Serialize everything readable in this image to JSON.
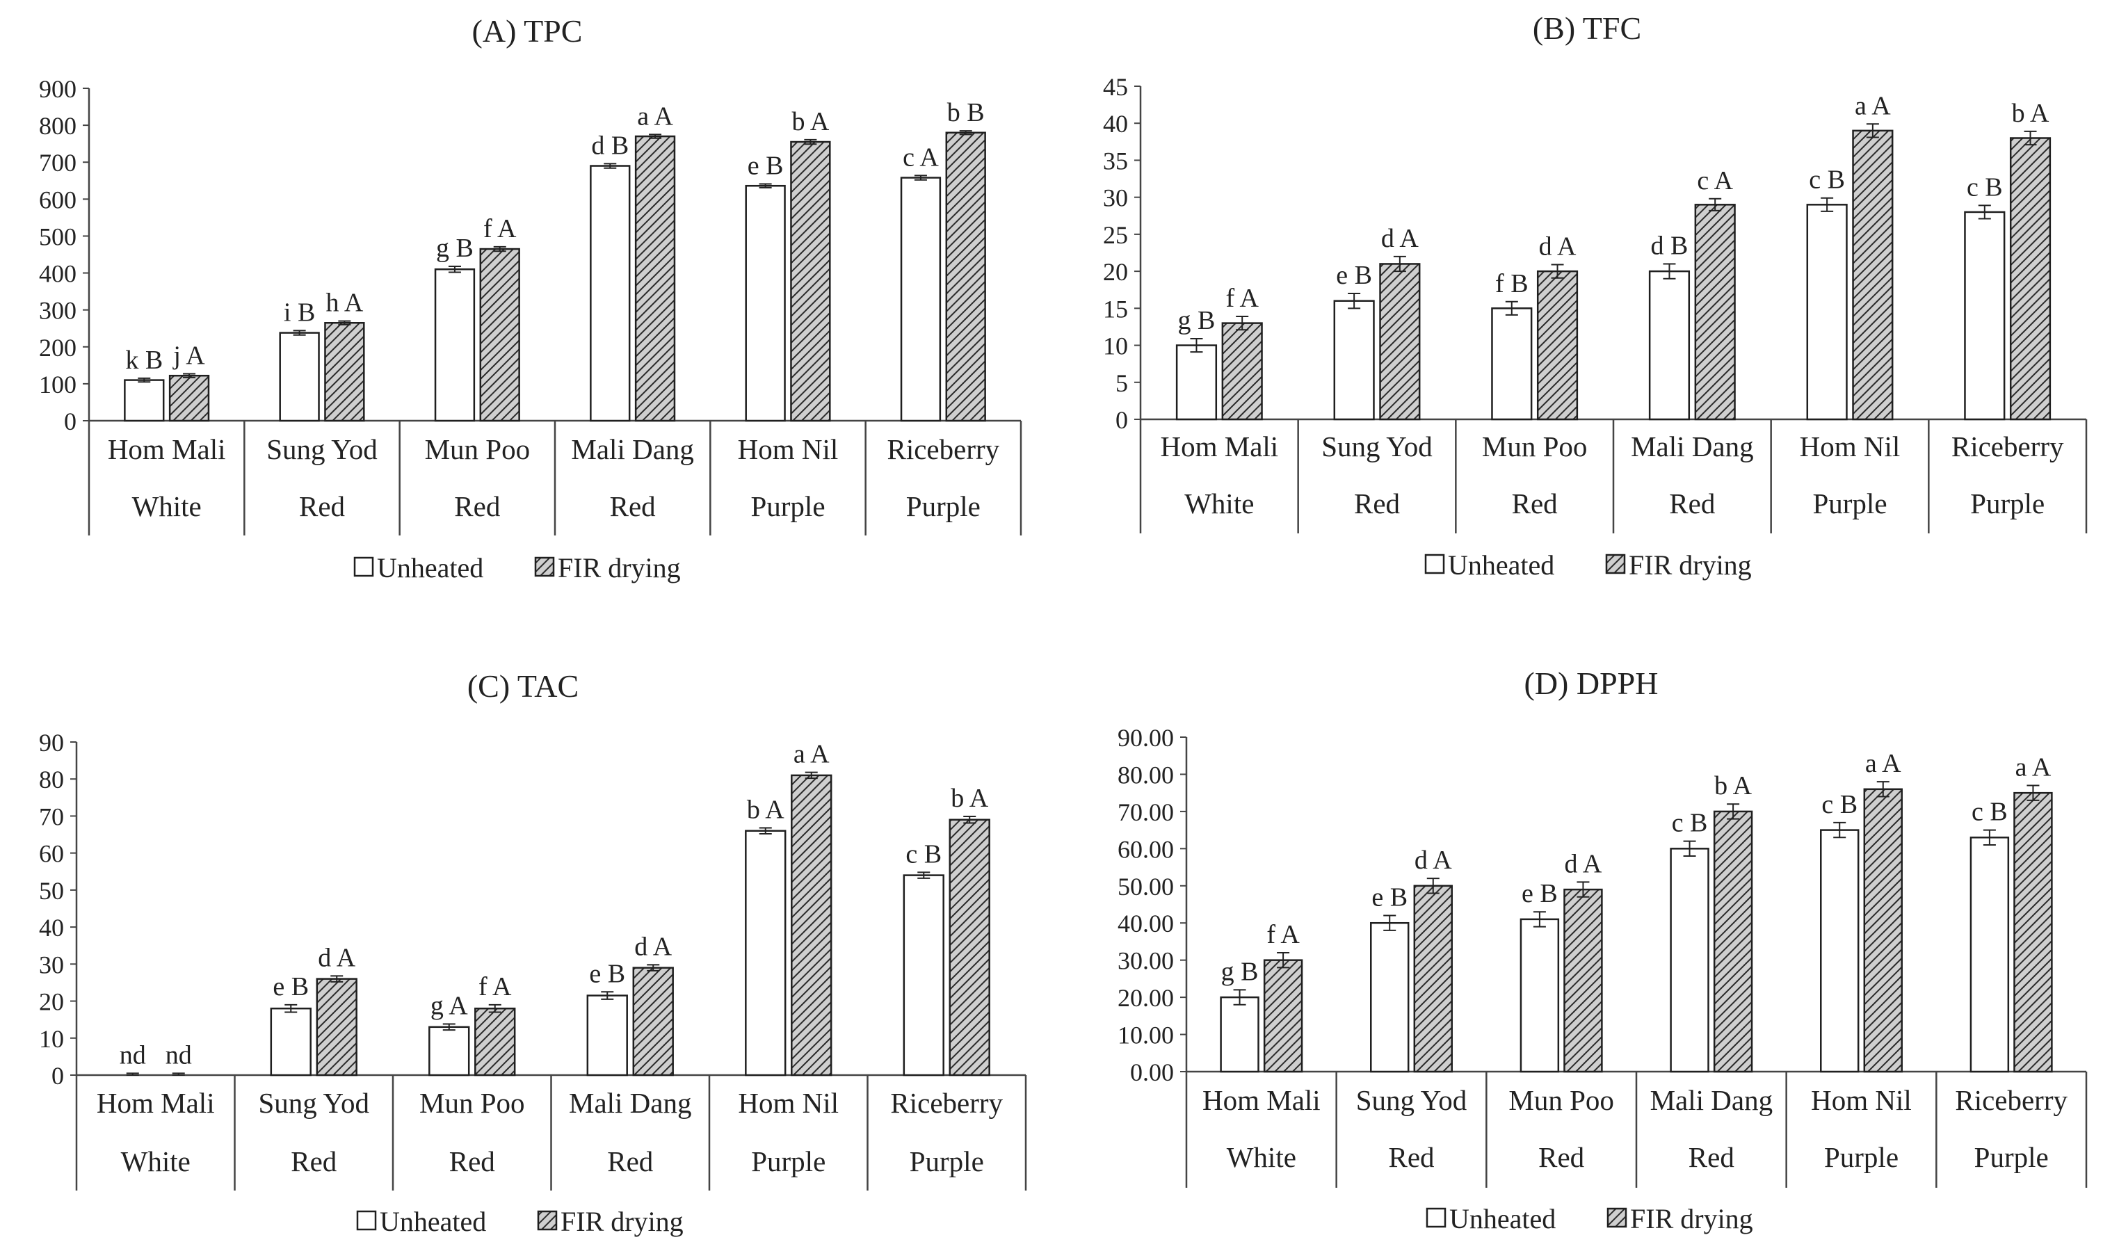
{
  "figure": {
    "bar_colors": {
      "unheated": "#ffffff",
      "fir": "#c8c8c8",
      "outline": "#1f1f1f",
      "hatch": "#2a2a2a"
    }
  },
  "chart_data": [
    {
      "id": "A",
      "type": "bar",
      "title": "(A) TPC",
      "categories": [
        "Hom Mali",
        "Sung Yod",
        "Mun Poo",
        "Mali Dang",
        "Hom Nil",
        "Riceberry"
      ],
      "groups": [
        "White",
        "Red",
        "Red",
        "Red",
        "Purple",
        "Purple"
      ],
      "ylim": [
        0,
        900
      ],
      "yticks": [
        "0",
        "100",
        "200",
        "300",
        "400",
        "500",
        "600",
        "700",
        "800",
        "900"
      ],
      "legend": [
        "Unheated",
        "FIR drying"
      ],
      "series": [
        {
          "name": "Unheated",
          "values": [
            110,
            238,
            410,
            690,
            636,
            658
          ],
          "errors": [
            5,
            6,
            8,
            6,
            5,
            6
          ],
          "labels": [
            "k B",
            "i B",
            "g B",
            "d B",
            "e B",
            "c A"
          ]
        },
        {
          "name": "FIR drying",
          "values": [
            122,
            265,
            465,
            770,
            755,
            780
          ],
          "errors": [
            5,
            5,
            6,
            5,
            6,
            5
          ],
          "labels": [
            "j A",
            "h A",
            "f A",
            "a A",
            "b A",
            "b B"
          ]
        }
      ]
    },
    {
      "id": "B",
      "type": "bar",
      "title": "(B) TFC",
      "categories": [
        "Hom Mali",
        "Sung Yod",
        "Mun Poo",
        "Mali Dang",
        "Hom Nil",
        "Riceberry"
      ],
      "groups": [
        "White",
        "Red",
        "Red",
        "Red",
        "Purple",
        "Purple"
      ],
      "ylim": [
        0,
        45
      ],
      "yticks": [
        "0",
        "5",
        "10",
        "15",
        "20",
        "25",
        "30",
        "35",
        "40",
        "45"
      ],
      "legend": [
        "Unheated",
        "FIR drying"
      ],
      "series": [
        {
          "name": "Unheated",
          "values": [
            10,
            16,
            15,
            20,
            29,
            28
          ],
          "errors": [
            0.9,
            1.0,
            0.9,
            1.0,
            0.9,
            0.9
          ],
          "labels": [
            "g B",
            "e B",
            "f B",
            "d B",
            "c B",
            "c B"
          ]
        },
        {
          "name": "FIR drying",
          "values": [
            13,
            21,
            20,
            29,
            39,
            38
          ],
          "errors": [
            0.9,
            1.0,
            0.9,
            0.8,
            0.9,
            0.9
          ],
          "labels": [
            "f A",
            "d A",
            "d A",
            "c A",
            "a A",
            "b A"
          ]
        }
      ]
    },
    {
      "id": "C",
      "type": "bar",
      "title": "(C) TAC",
      "categories": [
        "Hom Mali",
        "Sung Yod",
        "Mun Poo",
        "Mali Dang",
        "Hom Nil",
        "Riceberry"
      ],
      "groups": [
        "White",
        "Red",
        "Red",
        "Red",
        "Purple",
        "Purple"
      ],
      "ylim": [
        0,
        90
      ],
      "yticks": [
        "0",
        "10",
        "20",
        "30",
        "40",
        "50",
        "60",
        "70",
        "80",
        "90"
      ],
      "legend": [
        "Unheated",
        "FIR drying"
      ],
      "series": [
        {
          "name": "Unheated",
          "values": [
            0,
            18,
            13,
            21.5,
            66,
            54
          ],
          "errors": [
            0.5,
            1.0,
            0.8,
            1.0,
            0.8,
            0.8
          ],
          "labels": [
            "nd",
            "e B",
            "g A",
            "e B",
            "b A",
            "c B"
          ]
        },
        {
          "name": "FIR drying",
          "values": [
            0,
            26,
            18,
            29,
            81,
            69
          ],
          "errors": [
            0.5,
            0.8,
            1.0,
            0.8,
            0.8,
            0.9
          ],
          "labels": [
            "nd",
            "d A",
            "f A",
            "d A",
            "a A",
            "b A"
          ]
        }
      ]
    },
    {
      "id": "D",
      "type": "bar",
      "title": "(D) DPPH",
      "categories": [
        "Hom Mali",
        "Sung Yod",
        "Mun Poo",
        "Mali Dang",
        "Hom Nil",
        "Riceberry"
      ],
      "groups": [
        "White",
        "Red",
        "Red",
        "Red",
        "Purple",
        "Purple"
      ],
      "ylim": [
        0,
        90
      ],
      "yticks": [
        "0.00",
        "10.00",
        "20.00",
        "30.00",
        "40.00",
        "50.00",
        "60.00",
        "70.00",
        "80.00",
        "90.00"
      ],
      "legend": [
        "Unheated",
        "FIR drying"
      ],
      "series": [
        {
          "name": "Unheated",
          "values": [
            20,
            40,
            41,
            60,
            65,
            63
          ],
          "errors": [
            2,
            2,
            2,
            2,
            2,
            2
          ],
          "labels": [
            "g B",
            "e B",
            "e B",
            "c B",
            "c B",
            "c B"
          ]
        },
        {
          "name": "FIR drying",
          "values": [
            30,
            50,
            49,
            70,
            76,
            75
          ],
          "errors": [
            2,
            2,
            2,
            2,
            2,
            2
          ],
          "labels": [
            "f A",
            "d A",
            "d A",
            "b A",
            "a A",
            "a A"
          ]
        }
      ]
    }
  ]
}
